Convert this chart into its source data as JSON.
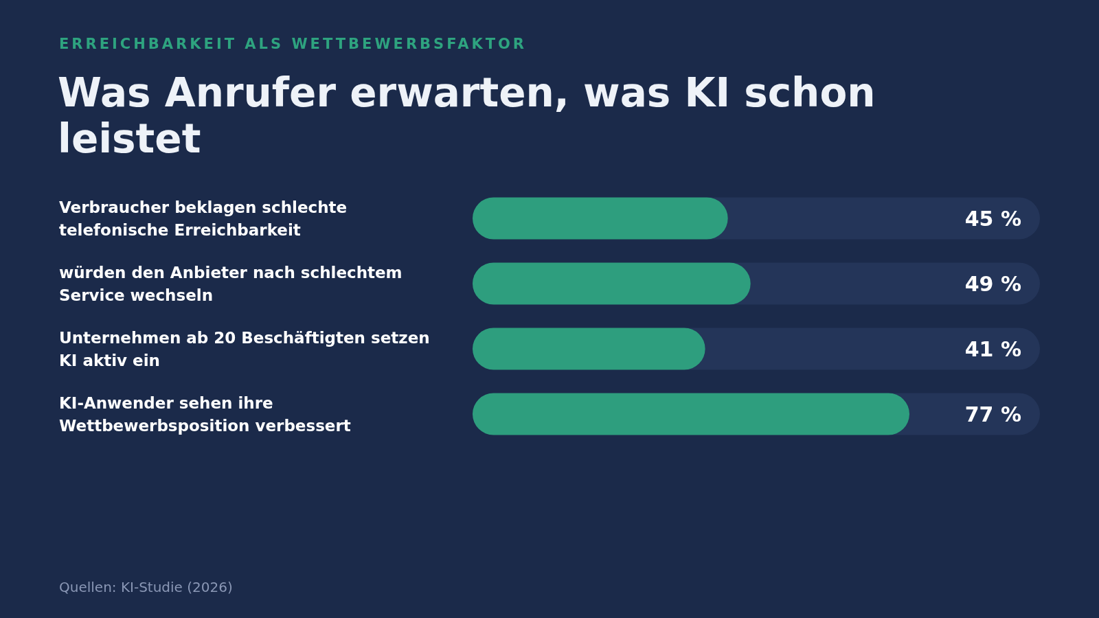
{
  "chart_data": {
    "type": "bar",
    "orientation": "horizontal",
    "subtitle": "ERREICHBARKEIT ALS WETTBEWERBSFAKTOR",
    "title": "Was Anrufer erwarten, was KI schon leistet",
    "categories": [
      "Verbraucher beklagen schlechte telefonische Erreichbarkeit",
      "würden den Anbieter nach schlechtem Service wechseln",
      "Unternehmen ab 20 Beschäftigten setzen KI aktiv ein",
      "KI-Anwender sehen ihre Wettbewerbsposition verbessert"
    ],
    "values": [
      45,
      49,
      41,
      77
    ],
    "color": "#2e9e7e",
    "value_labels": [
      "45 %",
      "49 %",
      "41 %",
      "77 %"
    ],
    "xlim": [
      0,
      100
    ],
    "tick_labels": false,
    "annotations": [
      "Quellen: KI-Studie (2026)"
    ]
  }
}
